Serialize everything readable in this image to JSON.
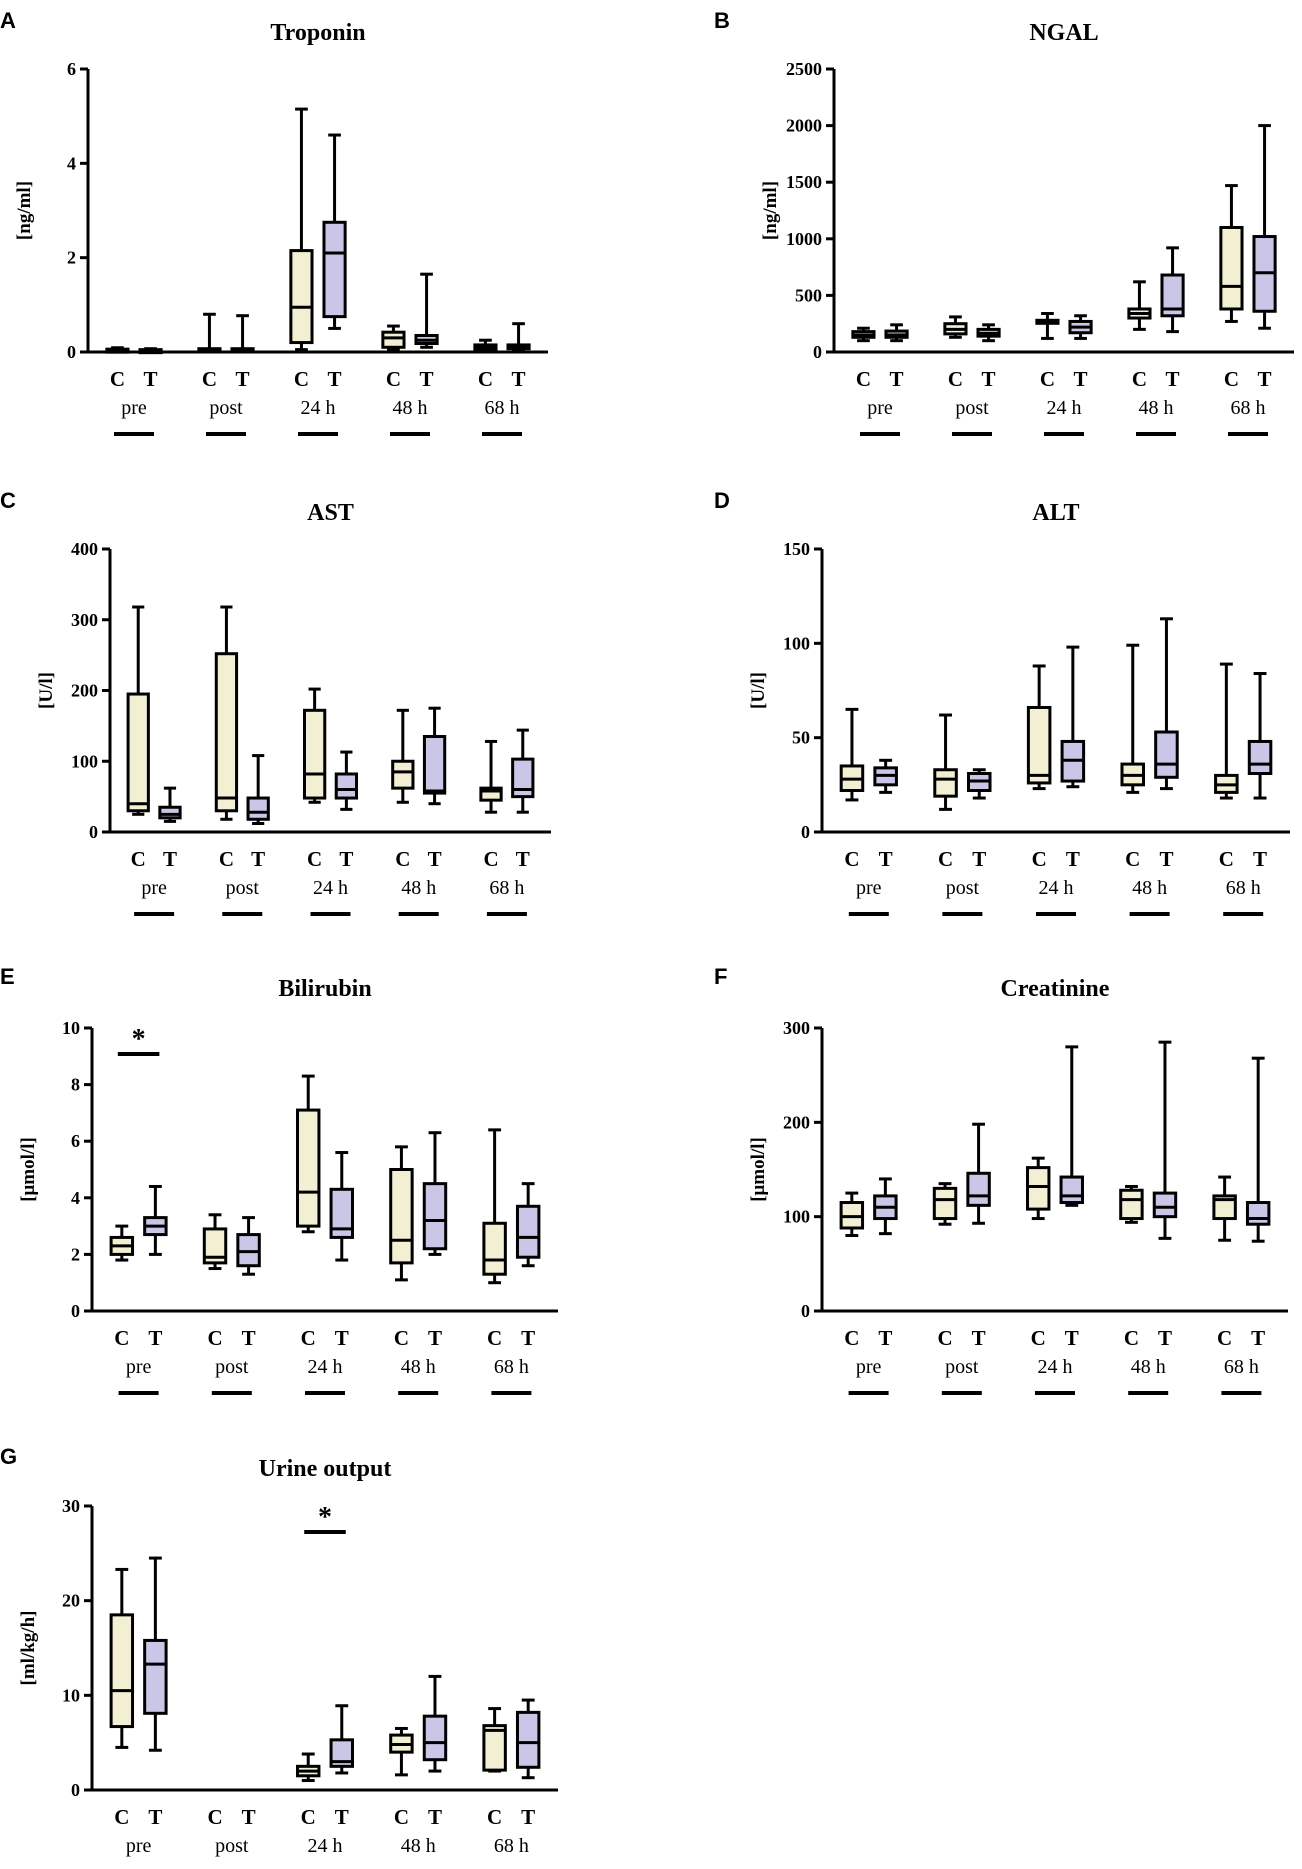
{
  "colors": {
    "C": "#f3efd2",
    "T": "#c9c6e8",
    "stroke": "#000000"
  },
  "panels": [
    {
      "letter": "A",
      "title": "Troponin",
      "ylabel": "[ng/ml]",
      "ylim": [
        0,
        6
      ],
      "yticks": [
        "0",
        "2",
        "4",
        "6"
      ],
      "timepoints": [
        "pre",
        "post",
        "24 h",
        "48 h",
        "68 h"
      ],
      "groups": [
        "C",
        "T"
      ],
      "boxes": [
        {
          "tp": "pre",
          "g": "C",
          "min": 0.0,
          "q1": 0.02,
          "med": 0.04,
          "q3": 0.06,
          "max": 0.09
        },
        {
          "tp": "pre",
          "g": "T",
          "min": 0.0,
          "q1": 0.02,
          "med": 0.03,
          "q3": 0.05,
          "max": 0.07
        },
        {
          "tp": "post",
          "g": "C",
          "min": 0.0,
          "q1": 0.02,
          "med": 0.05,
          "q3": 0.07,
          "max": 0.8
        },
        {
          "tp": "post",
          "g": "T",
          "min": 0.0,
          "q1": 0.02,
          "med": 0.05,
          "q3": 0.07,
          "max": 0.77
        },
        {
          "tp": "24 h",
          "g": "C",
          "min": 0.05,
          "q1": 0.2,
          "med": 0.95,
          "q3": 2.15,
          "max": 5.15
        },
        {
          "tp": "24 h",
          "g": "T",
          "min": 0.5,
          "q1": 0.75,
          "med": 2.1,
          "q3": 2.75,
          "max": 4.6
        },
        {
          "tp": "48 h",
          "g": "C",
          "min": 0.05,
          "q1": 0.1,
          "med": 0.3,
          "q3": 0.42,
          "max": 0.55
        },
        {
          "tp": "48 h",
          "g": "T",
          "min": 0.1,
          "q1": 0.18,
          "med": 0.25,
          "q3": 0.35,
          "max": 1.65
        },
        {
          "tp": "68 h",
          "g": "C",
          "min": 0.02,
          "q1": 0.05,
          "med": 0.1,
          "q3": 0.15,
          "max": 0.25
        },
        {
          "tp": "68 h",
          "g": "T",
          "min": 0.02,
          "q1": 0.07,
          "med": 0.12,
          "q3": 0.15,
          "max": 0.6
        }
      ],
      "sig": []
    },
    {
      "letter": "B",
      "title": "NGAL",
      "ylabel": "[ng/ml]",
      "ylim": [
        0,
        2500
      ],
      "yticks": [
        "0",
        "500",
        "1000",
        "1500",
        "2000",
        "2500"
      ],
      "timepoints": [
        "pre",
        "post",
        "24 h",
        "48 h",
        "68 h"
      ],
      "groups": [
        "C",
        "T"
      ],
      "boxes": [
        {
          "tp": "pre",
          "g": "C",
          "min": 100,
          "q1": 130,
          "med": 150,
          "q3": 180,
          "max": 210
        },
        {
          "tp": "pre",
          "g": "T",
          "min": 100,
          "q1": 130,
          "med": 150,
          "q3": 185,
          "max": 240
        },
        {
          "tp": "post",
          "g": "C",
          "min": 130,
          "q1": 160,
          "med": 200,
          "q3": 250,
          "max": 310
        },
        {
          "tp": "post",
          "g": "T",
          "min": 100,
          "q1": 140,
          "med": 165,
          "q3": 200,
          "max": 240
        },
        {
          "tp": "24 h",
          "g": "C",
          "min": 120,
          "q1": 255,
          "med": 265,
          "q3": 280,
          "max": 340
        },
        {
          "tp": "24 h",
          "g": "T",
          "min": 120,
          "q1": 170,
          "med": 220,
          "q3": 270,
          "max": 320
        },
        {
          "tp": "48 h",
          "g": "C",
          "min": 200,
          "q1": 300,
          "med": 340,
          "q3": 380,
          "max": 620
        },
        {
          "tp": "48 h",
          "g": "T",
          "min": 180,
          "q1": 320,
          "med": 380,
          "q3": 680,
          "max": 920
        },
        {
          "tp": "68 h",
          "g": "C",
          "min": 270,
          "q1": 380,
          "med": 580,
          "q3": 1100,
          "max": 1470
        },
        {
          "tp": "68 h",
          "g": "T",
          "min": 210,
          "q1": 360,
          "med": 700,
          "q3": 1020,
          "max": 2000
        }
      ],
      "sig": []
    },
    {
      "letter": "C",
      "title": "AST",
      "ylabel": "[U/l]",
      "ylim": [
        0,
        400
      ],
      "yticks": [
        "0",
        "100",
        "200",
        "300",
        "400"
      ],
      "timepoints": [
        "pre",
        "post",
        "24 h",
        "48 h",
        "68 h"
      ],
      "groups": [
        "C",
        "T"
      ],
      "boxes": [
        {
          "tp": "pre",
          "g": "C",
          "min": 25,
          "q1": 30,
          "med": 40,
          "q3": 195,
          "max": 318
        },
        {
          "tp": "pre",
          "g": "T",
          "min": 15,
          "q1": 20,
          "med": 25,
          "q3": 35,
          "max": 62
        },
        {
          "tp": "post",
          "g": "C",
          "min": 18,
          "q1": 30,
          "med": 48,
          "q3": 252,
          "max": 318
        },
        {
          "tp": "post",
          "g": "T",
          "min": 12,
          "q1": 18,
          "med": 28,
          "q3": 48,
          "max": 108
        },
        {
          "tp": "24 h",
          "g": "C",
          "min": 42,
          "q1": 48,
          "med": 82,
          "q3": 172,
          "max": 202
        },
        {
          "tp": "24 h",
          "g": "T",
          "min": 32,
          "q1": 48,
          "med": 60,
          "q3": 82,
          "max": 113
        },
        {
          "tp": "48 h",
          "g": "C",
          "min": 42,
          "q1": 62,
          "med": 85,
          "q3": 100,
          "max": 172
        },
        {
          "tp": "48 h",
          "g": "T",
          "min": 40,
          "q1": 55,
          "med": 58,
          "q3": 135,
          "max": 175
        },
        {
          "tp": "68 h",
          "g": "C",
          "min": 28,
          "q1": 45,
          "med": 58,
          "q3": 62,
          "max": 128
        },
        {
          "tp": "68 h",
          "g": "T",
          "min": 28,
          "q1": 50,
          "med": 60,
          "q3": 103,
          "max": 144
        }
      ],
      "sig": []
    },
    {
      "letter": "D",
      "title": "ALT",
      "ylabel": "[U/l]",
      "ylim": [
        0,
        150
      ],
      "yticks": [
        "0",
        "50",
        "100",
        "150"
      ],
      "timepoints": [
        "pre",
        "post",
        "24 h",
        "48 h",
        "68 h"
      ],
      "groups": [
        "C",
        "T"
      ],
      "boxes": [
        {
          "tp": "pre",
          "g": "C",
          "min": 17,
          "q1": 22,
          "med": 28,
          "q3": 35,
          "max": 65
        },
        {
          "tp": "pre",
          "g": "T",
          "min": 21,
          "q1": 25,
          "med": 30,
          "q3": 34,
          "max": 38
        },
        {
          "tp": "post",
          "g": "C",
          "min": 12,
          "q1": 19,
          "med": 28,
          "q3": 33,
          "max": 62
        },
        {
          "tp": "post",
          "g": "T",
          "min": 18,
          "q1": 22,
          "med": 27,
          "q3": 31,
          "max": 33
        },
        {
          "tp": "24 h",
          "g": "C",
          "min": 23,
          "q1": 26,
          "med": 30,
          "q3": 66,
          "max": 88
        },
        {
          "tp": "24 h",
          "g": "T",
          "min": 24,
          "q1": 27,
          "med": 38,
          "q3": 48,
          "max": 98
        },
        {
          "tp": "48 h",
          "g": "C",
          "min": 21,
          "q1": 25,
          "med": 30,
          "q3": 36,
          "max": 99
        },
        {
          "tp": "48 h",
          "g": "T",
          "min": 23,
          "q1": 29,
          "med": 36,
          "q3": 53,
          "max": 113
        },
        {
          "tp": "68 h",
          "g": "C",
          "min": 18,
          "q1": 21,
          "med": 25,
          "q3": 30,
          "max": 89
        },
        {
          "tp": "68 h",
          "g": "T",
          "min": 18,
          "q1": 31,
          "med": 36,
          "q3": 48,
          "max": 84
        }
      ],
      "sig": []
    },
    {
      "letter": "E",
      "title": "Bilirubin",
      "ylabel": "[μmol/l]",
      "ylim": [
        0,
        10
      ],
      "yticks": [
        "0",
        "2",
        "4",
        "6",
        "8",
        "10"
      ],
      "timepoints": [
        "pre",
        "post",
        "24 h",
        "48 h",
        "68 h"
      ],
      "groups": [
        "C",
        "T"
      ],
      "boxes": [
        {
          "tp": "pre",
          "g": "C",
          "min": 1.8,
          "q1": 2.0,
          "med": 2.3,
          "q3": 2.6,
          "max": 3.0
        },
        {
          "tp": "pre",
          "g": "T",
          "min": 2.0,
          "q1": 2.7,
          "med": 3.0,
          "q3": 3.3,
          "max": 4.4
        },
        {
          "tp": "post",
          "g": "C",
          "min": 1.5,
          "q1": 1.7,
          "med": 1.9,
          "q3": 2.9,
          "max": 3.4
        },
        {
          "tp": "post",
          "g": "T",
          "min": 1.3,
          "q1": 1.6,
          "med": 2.1,
          "q3": 2.7,
          "max": 3.3
        },
        {
          "tp": "24 h",
          "g": "C",
          "min": 2.8,
          "q1": 3.0,
          "med": 4.2,
          "q3": 7.1,
          "max": 8.3
        },
        {
          "tp": "24 h",
          "g": "T",
          "min": 1.8,
          "q1": 2.6,
          "med": 2.9,
          "q3": 4.3,
          "max": 5.6
        },
        {
          "tp": "48 h",
          "g": "C",
          "min": 1.1,
          "q1": 1.7,
          "med": 2.5,
          "q3": 5.0,
          "max": 5.8
        },
        {
          "tp": "48 h",
          "g": "T",
          "min": 2.0,
          "q1": 2.2,
          "med": 3.2,
          "q3": 4.5,
          "max": 6.3
        },
        {
          "tp": "68 h",
          "g": "C",
          "min": 1.0,
          "q1": 1.3,
          "med": 1.8,
          "q3": 3.1,
          "max": 6.4
        },
        {
          "tp": "68 h",
          "g": "T",
          "min": 1.6,
          "q1": 1.9,
          "med": 2.6,
          "q3": 3.7,
          "max": 4.5
        }
      ],
      "sig": [
        {
          "tp": "pre",
          "label": "*"
        }
      ]
    },
    {
      "letter": "F",
      "title": "Creatinine",
      "ylabel": "[μmol/l]",
      "ylim": [
        0,
        300
      ],
      "yticks": [
        "0",
        "100",
        "200",
        "300"
      ],
      "timepoints": [
        "pre",
        "post",
        "24 h",
        "48 h",
        "68 h"
      ],
      "groups": [
        "C",
        "T"
      ],
      "boxes": [
        {
          "tp": "pre",
          "g": "C",
          "min": 80,
          "q1": 88,
          "med": 100,
          "q3": 115,
          "max": 125
        },
        {
          "tp": "pre",
          "g": "T",
          "min": 82,
          "q1": 98,
          "med": 110,
          "q3": 122,
          "max": 140
        },
        {
          "tp": "post",
          "g": "C",
          "min": 92,
          "q1": 98,
          "med": 118,
          "q3": 130,
          "max": 135
        },
        {
          "tp": "post",
          "g": "T",
          "min": 93,
          "q1": 112,
          "med": 122,
          "q3": 146,
          "max": 198
        },
        {
          "tp": "24 h",
          "g": "C",
          "min": 98,
          "q1": 108,
          "med": 132,
          "q3": 152,
          "max": 162
        },
        {
          "tp": "24 h",
          "g": "T",
          "min": 112,
          "q1": 115,
          "med": 122,
          "q3": 142,
          "max": 280
        },
        {
          "tp": "48 h",
          "g": "C",
          "min": 94,
          "q1": 98,
          "med": 118,
          "q3": 128,
          "max": 132
        },
        {
          "tp": "48 h",
          "g": "T",
          "min": 77,
          "q1": 100,
          "med": 110,
          "q3": 125,
          "max": 285
        },
        {
          "tp": "68 h",
          "g": "C",
          "min": 75,
          "q1": 98,
          "med": 118,
          "q3": 122,
          "max": 142
        },
        {
          "tp": "68 h",
          "g": "T",
          "min": 74,
          "q1": 92,
          "med": 98,
          "q3": 115,
          "max": 268
        }
      ],
      "sig": []
    },
    {
      "letter": "G",
      "title": "Urine output",
      "ylabel": "[ml/kg/h]",
      "ylim": [
        0,
        30
      ],
      "yticks": [
        "0",
        "10",
        "20",
        "30"
      ],
      "timepoints": [
        "pre",
        "post",
        "24 h",
        "48 h",
        "68 h"
      ],
      "groups": [
        "C",
        "T"
      ],
      "boxes": [
        {
          "tp": "pre",
          "g": "C",
          "min": 4.5,
          "q1": 6.7,
          "med": 10.5,
          "q3": 18.5,
          "max": 23.3
        },
        {
          "tp": "pre",
          "g": "T",
          "min": 4.2,
          "q1": 8.1,
          "med": 13.3,
          "q3": 15.8,
          "max": 24.5
        },
        {
          "tp": "24 h",
          "g": "C",
          "min": 1.0,
          "q1": 1.5,
          "med": 2.0,
          "q3": 2.5,
          "max": 3.8
        },
        {
          "tp": "24 h",
          "g": "T",
          "min": 1.8,
          "q1": 2.5,
          "med": 3.0,
          "q3": 5.3,
          "max": 8.9
        },
        {
          "tp": "48 h",
          "g": "C",
          "min": 1.6,
          "q1": 4.0,
          "med": 4.8,
          "q3": 5.8,
          "max": 6.5
        },
        {
          "tp": "48 h",
          "g": "T",
          "min": 2.0,
          "q1": 3.2,
          "med": 5.0,
          "q3": 7.8,
          "max": 12.0
        },
        {
          "tp": "68 h",
          "g": "C",
          "min": 2.0,
          "q1": 2.1,
          "med": 6.3,
          "q3": 6.8,
          "max": 8.6
        },
        {
          "tp": "68 h",
          "g": "T",
          "min": 1.3,
          "q1": 2.4,
          "med": 5.0,
          "q3": 8.2,
          "max": 9.5
        }
      ],
      "sig": [
        {
          "tp": "24 h",
          "label": "*"
        }
      ]
    }
  ],
  "chart_data": [
    {
      "type": "boxplot",
      "title": "Troponin",
      "ylabel": "[ng/ml]",
      "ylim": [
        0,
        6
      ],
      "categories": [
        "pre",
        "post",
        "24 h",
        "48 h",
        "68 h"
      ],
      "series": [
        "C",
        "T"
      ]
    },
    {
      "type": "boxplot",
      "title": "NGAL",
      "ylabel": "[ng/ml]",
      "ylim": [
        0,
        2500
      ],
      "categories": [
        "pre",
        "post",
        "24 h",
        "48 h",
        "68 h"
      ],
      "series": [
        "C",
        "T"
      ]
    },
    {
      "type": "boxplot",
      "title": "AST",
      "ylabel": "[U/l]",
      "ylim": [
        0,
        400
      ],
      "categories": [
        "pre",
        "post",
        "24 h",
        "48 h",
        "68 h"
      ],
      "series": [
        "C",
        "T"
      ]
    },
    {
      "type": "boxplot",
      "title": "ALT",
      "ylabel": "[U/l]",
      "ylim": [
        0,
        150
      ],
      "categories": [
        "pre",
        "post",
        "24 h",
        "48 h",
        "68 h"
      ],
      "series": [
        "C",
        "T"
      ]
    },
    {
      "type": "boxplot",
      "title": "Bilirubin",
      "ylabel": "[μmol/l]",
      "ylim": [
        0,
        10
      ],
      "categories": [
        "pre",
        "post",
        "24 h",
        "48 h",
        "68 h"
      ],
      "series": [
        "C",
        "T"
      ]
    },
    {
      "type": "boxplot",
      "title": "Creatinine",
      "ylabel": "[μmol/l]",
      "ylim": [
        0,
        300
      ],
      "categories": [
        "pre",
        "post",
        "24 h",
        "48 h",
        "68 h"
      ],
      "series": [
        "C",
        "T"
      ]
    },
    {
      "type": "boxplot",
      "title": "Urine output",
      "ylabel": "[ml/kg/h]",
      "ylim": [
        0,
        30
      ],
      "categories": [
        "pre",
        "post",
        "24 h",
        "48 h",
        "68 h"
      ],
      "series": [
        "C",
        "T"
      ]
    }
  ]
}
